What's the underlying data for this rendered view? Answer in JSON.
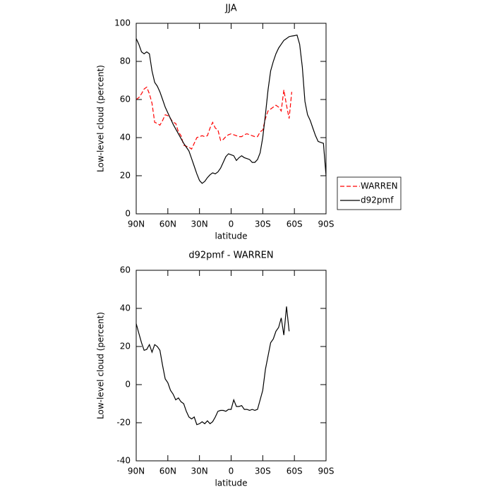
{
  "chart_data": [
    {
      "type": "line",
      "title": "JJA",
      "xlabel": "latitude",
      "ylabel": "Low-level cloud (percent)",
      "x": [
        90,
        87.5,
        85,
        82.5,
        80,
        77.5,
        75,
        72.5,
        70,
        67.5,
        65,
        62.5,
        60,
        57.5,
        55,
        52.5,
        50,
        47.5,
        45,
        42.5,
        40,
        37.5,
        35,
        32.5,
        30,
        27.5,
        25,
        22.5,
        20,
        17.5,
        15,
        12.5,
        10,
        7.5,
        5,
        2.5,
        0,
        -2.5,
        -5,
        -7.5,
        -10,
        -12.5,
        -15,
        -17.5,
        -20,
        -22.5,
        -25,
        -27.5,
        -30,
        -32.5,
        -35,
        -37.5,
        -40,
        -42.5,
        -45,
        -47.5,
        -50,
        -52.5,
        -55,
        -57.5,
        -60,
        -62.5,
        -65,
        -67.5,
        -70,
        -72.5,
        -75,
        -77.5,
        -80,
        -82.5,
        -85,
        -87.5,
        -90
      ],
      "series": [
        {
          "name": "WARREN",
          "color": "#ff0000",
          "dashed": true,
          "values": [
            60,
            61,
            63,
            65.5,
            66.5,
            63,
            58,
            48,
            47.5,
            46.5,
            49,
            52,
            51.5,
            50,
            48,
            47.5,
            43,
            41,
            36,
            35.5,
            35,
            34,
            37,
            40,
            40.5,
            41,
            40.5,
            41,
            45,
            48,
            45,
            44,
            38.5,
            39,
            40.5,
            41.5,
            42,
            41.5,
            41,
            40.5,
            40.5,
            41.5,
            42,
            41.5,
            41,
            40.5,
            40.5,
            43,
            44,
            50,
            54,
            55,
            56,
            57,
            56,
            54,
            65,
            57,
            50,
            64,
            null,
            null,
            null,
            null,
            null,
            null,
            null,
            null,
            null,
            null,
            null,
            null,
            null
          ]
        },
        {
          "name": "d92pmf",
          "color": "#000000",
          "dashed": false,
          "values": [
            92,
            89,
            85,
            84,
            85,
            84,
            75,
            69,
            67,
            64,
            60,
            56,
            53,
            50,
            47,
            44.5,
            42,
            39.5,
            37,
            35,
            33,
            29,
            25,
            21,
            17.5,
            16,
            17,
            19,
            20.5,
            21.5,
            21,
            22,
            24,
            27,
            30,
            31.5,
            31,
            30.5,
            28,
            29.5,
            30.5,
            29.5,
            29,
            28.5,
            27,
            27,
            28.5,
            32,
            40,
            52,
            65,
            75,
            80,
            84,
            87,
            89,
            91,
            92,
            93,
            93.3,
            93.5,
            93.8,
            89,
            77,
            59,
            52,
            49,
            45,
            41,
            38,
            37.5,
            37,
            20
          ]
        }
      ],
      "xlim": [
        90,
        -90
      ],
      "xticks": [
        {
          "value": 90,
          "label": "90N"
        },
        {
          "value": 60,
          "label": "60N"
        },
        {
          "value": 30,
          "label": "30N"
        },
        0,
        {
          "value": -30,
          "label": "30S"
        },
        {
          "value": -60,
          "label": "60S"
        },
        {
          "value": -90,
          "label": "90S"
        }
      ],
      "ylim": [
        0,
        100
      ],
      "yticks": [
        0,
        20,
        40,
        60,
        80,
        100
      ],
      "legend": "outside-right"
    },
    {
      "type": "line",
      "title": "d92pmf - WARREN",
      "xlabel": "latitude",
      "ylabel": "Low-level cloud (percent)",
      "x": [
        90,
        87.5,
        85,
        82.5,
        80,
        77.5,
        75,
        72.5,
        70,
        67.5,
        65,
        62.5,
        60,
        57.5,
        55,
        52.5,
        50,
        47.5,
        45,
        42.5,
        40,
        37.5,
        35,
        32.5,
        30,
        27.5,
        25,
        22.5,
        20,
        17.5,
        15,
        12.5,
        10,
        7.5,
        5,
        2.5,
        0,
        -2.5,
        -5,
        -7.5,
        -10,
        -12.5,
        -15,
        -17.5,
        -20,
        -22.5,
        -25,
        -27.5,
        -30,
        -32.5,
        -35,
        -37.5,
        -40,
        -42.5,
        -45,
        -47.5,
        -50,
        -52.5,
        -55,
        -57.5,
        -60,
        -62.5,
        -65,
        -67.5,
        -70,
        -72.5,
        -75,
        -77.5,
        -80,
        -82.5,
        -85,
        -87.5,
        -90
      ],
      "series": [
        {
          "color": "#000000",
          "dashed": false,
          "values": [
            32,
            27,
            22,
            18,
            18.5,
            21,
            17,
            21,
            20,
            18,
            10,
            3,
            1,
            -3,
            -5,
            -8,
            -7,
            -9,
            -10,
            -14,
            -17,
            -18,
            -17,
            -21,
            -20.5,
            -19.5,
            -20.5,
            -19,
            -20.5,
            -19.5,
            -17,
            -14,
            -13.5,
            -13.5,
            -14,
            -13,
            -13,
            -8,
            -11.5,
            -11.5,
            -11,
            -13,
            -13,
            -13.5,
            -13,
            -13.5,
            -13,
            -8,
            -3,
            8,
            15,
            22,
            24,
            28,
            30,
            35,
            26,
            41,
            28,
            null,
            null,
            null,
            null,
            null,
            null,
            null,
            null,
            null,
            null,
            null,
            null,
            null,
            null
          ]
        }
      ],
      "xlim": [
        90,
        -90
      ],
      "xticks": [
        {
          "value": 90,
          "label": "90N"
        },
        {
          "value": 60,
          "label": "60N"
        },
        {
          "value": 30,
          "label": "30N"
        },
        0,
        {
          "value": -30,
          "label": "30S"
        },
        {
          "value": -60,
          "label": "60S"
        },
        {
          "value": -90,
          "label": "90S"
        }
      ],
      "ylim": [
        -40,
        60
      ],
      "yticks": [
        -40,
        -20,
        0,
        20,
        40,
        60
      ]
    }
  ]
}
